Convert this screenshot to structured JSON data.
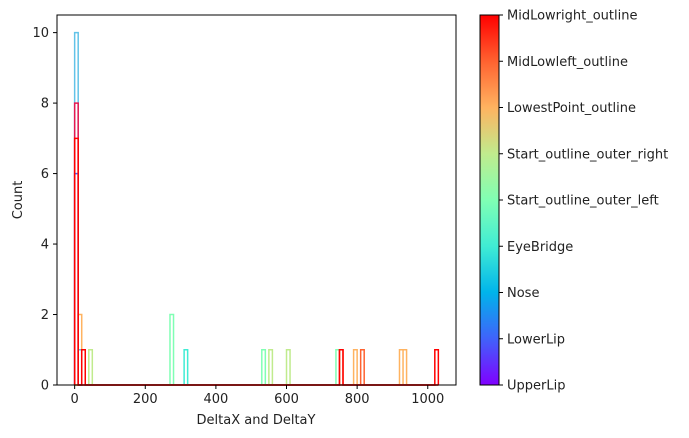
{
  "chart_data": {
    "type": "histogram",
    "xlabel": "DeltaX and DeltaY",
    "ylabel": "Count",
    "xlim": [
      -50,
      1080
    ],
    "ylim": [
      0,
      10.5
    ],
    "xticks": [
      0,
      200,
      400,
      600,
      800,
      1000
    ],
    "yticks": [
      0,
      2,
      4,
      6,
      8,
      10
    ],
    "grid": false,
    "colorbar": {
      "position": "right",
      "colormap": "rainbow",
      "gradient": [
        "#8000ff",
        "#4062fa",
        "#00b4eb",
        "#40ecd4",
        "#80ffb4",
        "#c0eb8d",
        "#ffb360",
        "#ff6230",
        "#ff0000"
      ],
      "labels": [
        "UpperLip",
        "LowerLip",
        "Nose",
        "EyeBridge",
        "Start_outline_outer_left",
        "Start_outline_outer_right",
        "LowestPoint_outline",
        "MidLowleft_outline",
        "MidLowright_outline"
      ]
    },
    "series": [
      {
        "color": "#4062fa",
        "bins": [
          [
            0,
            10,
            6
          ]
        ]
      },
      {
        "color": "#62c3e8",
        "bins": [
          [
            0,
            10,
            10
          ],
          [
            10,
            20,
            1
          ]
        ]
      },
      {
        "color": "#40ecd4",
        "bins": [
          [
            310,
            320,
            1
          ]
        ]
      },
      {
        "color": "#80ffb4",
        "bins": [
          [
            270,
            280,
            2
          ],
          [
            530,
            540,
            1
          ],
          [
            740,
            750,
            1
          ]
        ]
      },
      {
        "color": "#c0eb8d",
        "bins": [
          [
            40,
            50,
            1
          ],
          [
            550,
            560,
            1
          ],
          [
            600,
            610,
            1
          ]
        ]
      },
      {
        "color": "#ffb360",
        "bins": [
          [
            10,
            20,
            2
          ],
          [
            790,
            800,
            1
          ],
          [
            920,
            930,
            1
          ],
          [
            930,
            940,
            1
          ]
        ]
      },
      {
        "color": "#ff6230",
        "bins": [
          [
            750,
            760,
            1
          ],
          [
            810,
            820,
            1
          ]
        ]
      },
      {
        "color": "#e8174f",
        "bins": [
          [
            0,
            10,
            8
          ]
        ]
      },
      {
        "color": "#ff0000",
        "bins": [
          [
            0,
            10,
            7
          ],
          [
            20,
            30,
            1
          ],
          [
            750,
            760,
            1
          ],
          [
            1020,
            1030,
            1
          ]
        ]
      }
    ]
  }
}
